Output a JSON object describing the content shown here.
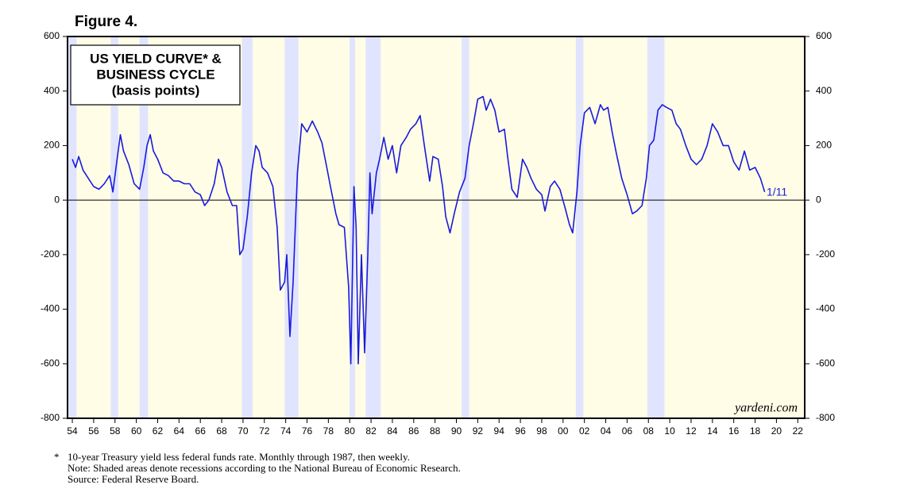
{
  "figure_label": "Figure 4.",
  "chart_data": {
    "type": "line",
    "title_lines": [
      "US YIELD CURVE* &",
      "BUSINESS CYCLE",
      "(basis points)"
    ],
    "watermark": "yardeni.com",
    "annotation": "1/11",
    "grid": false,
    "recessions": [
      [
        1953.6,
        1954.4
      ],
      [
        1957.6,
        1958.3
      ],
      [
        1960.3,
        1961.1
      ],
      [
        1969.9,
        1970.9
      ],
      [
        1973.9,
        1975.2
      ],
      [
        1980.0,
        1980.5
      ],
      [
        1981.5,
        1982.9
      ],
      [
        1990.5,
        1991.2
      ],
      [
        2001.2,
        2001.9
      ],
      [
        2007.9,
        2009.5
      ]
    ],
    "x": [
      1954.0,
      1954.3,
      1954.6,
      1955.0,
      1955.5,
      1956.0,
      1956.5,
      1957.0,
      1957.5,
      1957.8,
      1958.2,
      1958.5,
      1958.8,
      1959.3,
      1959.8,
      1960.3,
      1960.7,
      1961.0,
      1961.3,
      1961.6,
      1962.0,
      1962.5,
      1963.0,
      1963.5,
      1964.0,
      1964.5,
      1965.0,
      1965.5,
      1966.0,
      1966.4,
      1966.8,
      1967.3,
      1967.7,
      1968.0,
      1968.5,
      1969.0,
      1969.4,
      1969.7,
      1970.0,
      1970.4,
      1970.8,
      1971.2,
      1971.5,
      1971.8,
      1972.3,
      1972.8,
      1973.2,
      1973.5,
      1973.9,
      1974.1,
      1974.4,
      1974.7,
      1975.1,
      1975.5,
      1976.0,
      1976.5,
      1977.0,
      1977.4,
      1977.8,
      1978.2,
      1978.7,
      1979.0,
      1979.5,
      1979.9,
      1980.1,
      1980.4,
      1980.6,
      1980.8,
      1981.1,
      1981.4,
      1981.7,
      1981.9,
      1982.1,
      1982.5,
      1982.8,
      1983.2,
      1983.6,
      1984.0,
      1984.4,
      1984.8,
      1985.3,
      1985.7,
      1986.2,
      1986.6,
      1987.0,
      1987.5,
      1987.8,
      1988.3,
      1988.7,
      1989.0,
      1989.4,
      1989.8,
      1990.3,
      1990.8,
      1991.2,
      1991.6,
      1992.0,
      1992.5,
      1992.8,
      1993.2,
      1993.6,
      1994.0,
      1994.5,
      1994.8,
      1995.2,
      1995.7,
      1996.2,
      1996.6,
      1997.0,
      1997.5,
      1998.0,
      1998.3,
      1998.8,
      1999.2,
      1999.7,
      2000.2,
      2000.6,
      2000.9,
      2001.3,
      2001.6,
      2002.0,
      2002.5,
      2003.0,
      2003.5,
      2003.8,
      2004.2,
      2004.6,
      2005.0,
      2005.5,
      2006.0,
      2006.5,
      2006.9,
      2007.4,
      2007.8,
      2008.1,
      2008.5,
      2008.9,
      2009.3,
      2009.7,
      2010.2,
      2010.6,
      2011.0,
      2011.5,
      2012.0,
      2012.5,
      2013.0,
      2013.5,
      2014.0,
      2014.5,
      2015.0,
      2015.5,
      2016.0,
      2016.5,
      2017.0,
      2017.5,
      2018.0,
      2018.5,
      2018.9
    ],
    "series": [
      {
        "color": "#1a1adc",
        "values": [
          150,
          120,
          160,
          110,
          80,
          50,
          40,
          60,
          90,
          30,
          150,
          240,
          180,
          130,
          60,
          40,
          120,
          200,
          240,
          180,
          150,
          100,
          90,
          70,
          70,
          60,
          60,
          30,
          20,
          -20,
          0,
          60,
          150,
          120,
          30,
          -20,
          -20,
          -200,
          -180,
          -60,
          100,
          200,
          180,
          120,
          100,
          50,
          -100,
          -330,
          -300,
          -200,
          -500,
          -300,
          100,
          280,
          250,
          290,
          250,
          210,
          130,
          50,
          -50,
          -90,
          -100,
          -320,
          -600,
          50,
          -100,
          -600,
          -200,
          -560,
          -200,
          100,
          -50,
          100,
          150,
          230,
          150,
          200,
          100,
          200,
          230,
          260,
          280,
          310,
          200,
          70,
          160,
          150,
          50,
          -60,
          -120,
          -50,
          30,
          80,
          200,
          280,
          370,
          380,
          330,
          370,
          330,
          250,
          260,
          160,
          40,
          10,
          150,
          120,
          80,
          40,
          20,
          -40,
          50,
          70,
          40,
          -30,
          -90,
          -120,
          30,
          200,
          320,
          340,
          280,
          350,
          330,
          340,
          250,
          170,
          80,
          20,
          -50,
          -40,
          -20,
          80,
          200,
          220,
          330,
          350,
          340,
          330,
          280,
          260,
          200,
          150,
          130,
          150,
          200,
          280,
          250,
          200,
          200,
          140,
          110,
          180,
          110,
          120,
          80,
          30
        ]
      }
    ],
    "xlim": [
      1953.55,
      2022.65
    ],
    "xticks": [
      {
        "value": 1954,
        "label": "54"
      },
      {
        "value": 1956,
        "label": "56"
      },
      {
        "value": 1958,
        "label": "58"
      },
      {
        "value": 1960,
        "label": "60"
      },
      {
        "value": 1962,
        "label": "62"
      },
      {
        "value": 1964,
        "label": "64"
      },
      {
        "value": 1966,
        "label": "66"
      },
      {
        "value": 1968,
        "label": "68"
      },
      {
        "value": 1970,
        "label": "70"
      },
      {
        "value": 1972,
        "label": "72"
      },
      {
        "value": 1974,
        "label": "74"
      },
      {
        "value": 1976,
        "label": "76"
      },
      {
        "value": 1978,
        "label": "78"
      },
      {
        "value": 1980,
        "label": "80"
      },
      {
        "value": 1982,
        "label": "82"
      },
      {
        "value": 1984,
        "label": "84"
      },
      {
        "value": 1986,
        "label": "86"
      },
      {
        "value": 1988,
        "label": "88"
      },
      {
        "value": 1990,
        "label": "90"
      },
      {
        "value": 1992,
        "label": "92"
      },
      {
        "value": 1994,
        "label": "94"
      },
      {
        "value": 1996,
        "label": "96"
      },
      {
        "value": 1998,
        "label": "98"
      },
      {
        "value": 2000,
        "label": "00"
      },
      {
        "value": 2002,
        "label": "02"
      },
      {
        "value": 2004,
        "label": "04"
      },
      {
        "value": 2006,
        "label": "06"
      },
      {
        "value": 2008,
        "label": "08"
      },
      {
        "value": 2010,
        "label": "10"
      },
      {
        "value": 2012,
        "label": "12"
      },
      {
        "value": 2014,
        "label": "14"
      },
      {
        "value": 2016,
        "label": "16"
      },
      {
        "value": 2018,
        "label": "18"
      },
      {
        "value": 2020,
        "label": "20"
      },
      {
        "value": 2022,
        "label": "22"
      }
    ],
    "ylim": [
      -800,
      600
    ],
    "yticks": [
      -800,
      -600,
      -400,
      -200,
      0,
      200,
      400,
      600
    ],
    "y2lim": [
      -800,
      600
    ],
    "y2ticks": [
      -800,
      -600,
      -400,
      -200,
      0,
      200,
      400,
      600
    ]
  },
  "footnotes": [
    "*",
    "10-year Treasury yield less federal funds rate. Monthly through 1987, then weekly.",
    "Note: Shaded areas denote recessions according to the National Bureau of Economic Research.",
    "Source: Federal Reserve Board."
  ]
}
